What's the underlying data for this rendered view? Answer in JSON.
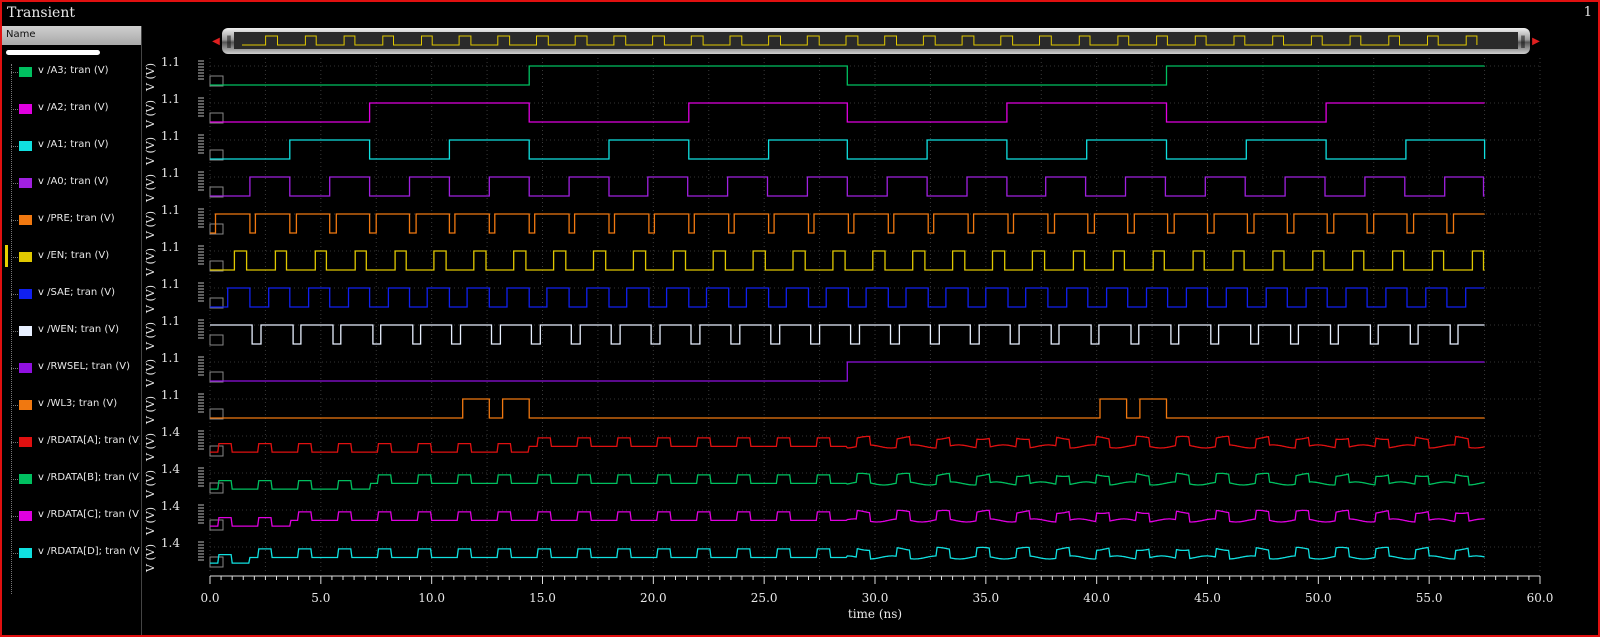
{
  "window": {
    "title": "Transient",
    "page_number": "1"
  },
  "names_panel": {
    "header": "Name"
  },
  "signals": [
    {
      "id": "A3",
      "label": "v /A3; tran (V)",
      "color": "#00c060",
      "ytick": "1.1",
      "unit": "V (V)"
    },
    {
      "id": "A2",
      "label": "v /A2; tran (V)",
      "color": "#e000e0",
      "ytick": "1.1",
      "unit": "V (V)"
    },
    {
      "id": "A1",
      "label": "v /A1; tran (V)",
      "color": "#10e0e0",
      "ytick": "1.1",
      "unit": "V (V)"
    },
    {
      "id": "A0",
      "label": "v /A0; tran (V)",
      "color": "#a020e0",
      "ytick": "1.1",
      "unit": "V (V)"
    },
    {
      "id": "PRE",
      "label": "v /PRE; tran (V)",
      "color": "#f07810",
      "ytick": "1.1",
      "unit": "V (V)"
    },
    {
      "id": "EN",
      "label": "v /EN; tran (V)",
      "color": "#e0c800",
      "ytick": "1.1",
      "unit": "V (V)"
    },
    {
      "id": "SAE",
      "label": "v /SAE; tran (V)",
      "color": "#1020f0",
      "ytick": "1.1",
      "unit": "V (V)"
    },
    {
      "id": "WEN",
      "label": "v /WEN; tran (V)",
      "color": "#e8f0ff",
      "ytick": "1.1",
      "unit": "V (V)"
    },
    {
      "id": "RWSEL",
      "label": "v /RWSEL; tran (V)",
      "color": "#9010e0",
      "ytick": "1.1",
      "unit": "V (V)"
    },
    {
      "id": "WL3",
      "label": "v /WL3; tran (V)",
      "color": "#f07810",
      "ytick": "1.1",
      "unit": "V (V)"
    },
    {
      "id": "RDATA_A",
      "label": "v /RDATA[A]; tran (V)",
      "color": "#e01010",
      "ytick": "1.4",
      "unit": "V (V)"
    },
    {
      "id": "RDATA_B",
      "label": "v /RDATA[B]; tran (V)",
      "color": "#00c060",
      "ytick": "1.4",
      "unit": "V (V)"
    },
    {
      "id": "RDATA_C",
      "label": "v /RDATA[C]; tran (V)",
      "color": "#e000e0",
      "ytick": "1.4",
      "unit": "V (V)"
    },
    {
      "id": "RDATA_D",
      "label": "v /RDATA[D]; tran (V)",
      "color": "#10e0e0",
      "ytick": "1.4",
      "unit": "V (V)"
    }
  ],
  "selected_signal": "EN",
  "time_axis": {
    "label": "time (ns)",
    "range": [
      0,
      60
    ],
    "ticks": [
      "0.0",
      "5.0",
      "10.0",
      "15.0",
      "20.0",
      "25.0",
      "30.0",
      "35.0",
      "40.0",
      "45.0",
      "50.0",
      "55.0",
      "60.0"
    ],
    "sim_end": 57.5
  },
  "chart_data": {
    "type": "line",
    "xlabel": "time (ns)",
    "xlim": [
      0,
      60
    ],
    "series": [
      {
        "name": "v /A3; tran (V)",
        "kind": "square",
        "period": 28.75,
        "start": 14.375,
        "high_frac": 0.5
      },
      {
        "name": "v /A2; tran (V)",
        "kind": "square",
        "period": 14.375,
        "start": 7.1875,
        "high_frac": 0.5
      },
      {
        "name": "v /A1; tran (V)",
        "kind": "square",
        "period": 7.1875,
        "start": 3.59,
        "high_frac": 0.5
      },
      {
        "name": "v /A0; tran (V)",
        "kind": "square",
        "period": 3.59,
        "start": 1.8,
        "high_frac": 0.5
      },
      {
        "name": "v /PRE; tran (V)",
        "kind": "square",
        "period": 1.8,
        "start": 0.25,
        "high_frac": 0.85
      },
      {
        "name": "v /EN; tran (V)",
        "kind": "square",
        "period": 1.8,
        "start": 1.1,
        "high_frac": 0.3
      },
      {
        "name": "v /SAE; tran (V)",
        "kind": "square",
        "period": 1.8,
        "start": 0.8,
        "high_frac": 0.55
      },
      {
        "name": "v /WEN; tran (V)",
        "kind": "square_inv",
        "period": 1.8,
        "start": 1.9,
        "high_frac": 0.2
      },
      {
        "name": "v /RWSEL; tran (V)",
        "kind": "step",
        "at": 28.75
      },
      {
        "name": "v /WL3; tran (V)",
        "kind": "pulses",
        "pulses": [
          [
            11.4,
            12.6
          ],
          [
            13.2,
            14.4
          ],
          [
            40.1,
            41.3
          ],
          [
            41.9,
            43.1
          ]
        ]
      },
      {
        "name": "v /RDATA[A]; tran (V)",
        "kind": "read",
        "base_switch": 14.375,
        "period": 1.8
      },
      {
        "name": "v /RDATA[B]; tran (V)",
        "kind": "read",
        "base_switch": 7.2,
        "period": 1.8
      },
      {
        "name": "v /RDATA[C]; tran (V)",
        "kind": "read",
        "base_switch": 3.6,
        "period": 1.8
      },
      {
        "name": "v /RDATA[D]; tran (V)",
        "kind": "read",
        "base_switch": 1.8,
        "period": 1.8
      }
    ]
  }
}
